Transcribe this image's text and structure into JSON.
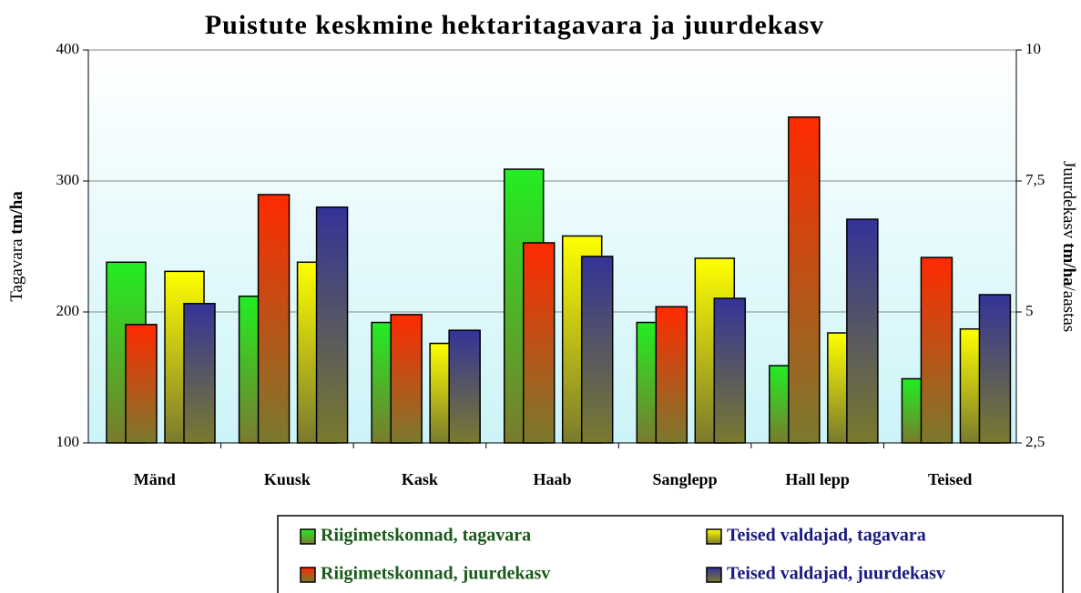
{
  "chart_data": {
    "type": "bar",
    "title": "Puistute keskmine hektaritagavara ja juurdekasv",
    "ylabel": [
      "Tagavara ",
      "tm/ha"
    ],
    "y2label": [
      "Juurdekasv ",
      "tm/ha",
      "/aastas"
    ],
    "categories": [
      "Mänd",
      "Kuusk",
      "Kask",
      "Haab",
      "Sanglepp",
      "Hall lepp",
      "Teised"
    ],
    "series": [
      {
        "name": "Riigimetskonnad, tagavara",
        "color": "#22ee22",
        "text_color": "#1a5a1a",
        "values": [
          238,
          212,
          192,
          309,
          192,
          159,
          149
        ]
      },
      {
        "name": "Riigimetskonnad, juurdekasv",
        "color": "#ff2a00",
        "text_color": "#1a5a1a",
        "axis": "y2",
        "values": [
          4.76,
          7.24,
          4.95,
          6.32,
          5.1,
          8.72,
          6.04
        ]
      },
      {
        "name": "Teised valdajad, tagavara",
        "color": "#ffff00",
        "text_color": "#1a1a80",
        "values": [
          231,
          238,
          176,
          258,
          241,
          184,
          187
        ]
      },
      {
        "name": "Teised valdajad, juurdekasv",
        "color": "#333399",
        "text_color": "#1a1a80",
        "axis": "y2",
        "values": [
          5.16,
          7.0,
          4.65,
          6.06,
          5.26,
          6.77,
          5.33
        ]
      }
    ],
    "ylim": [
      100,
      400
    ],
    "yticks": [
      100,
      200,
      300,
      400
    ],
    "y2lim": [
      2.5,
      10
    ],
    "y2ticks": [
      {
        "value": 2.5,
        "label": "2,5"
      },
      5,
      {
        "value": 7.5,
        "label": "7,5"
      },
      10
    ],
    "grid": true
  }
}
